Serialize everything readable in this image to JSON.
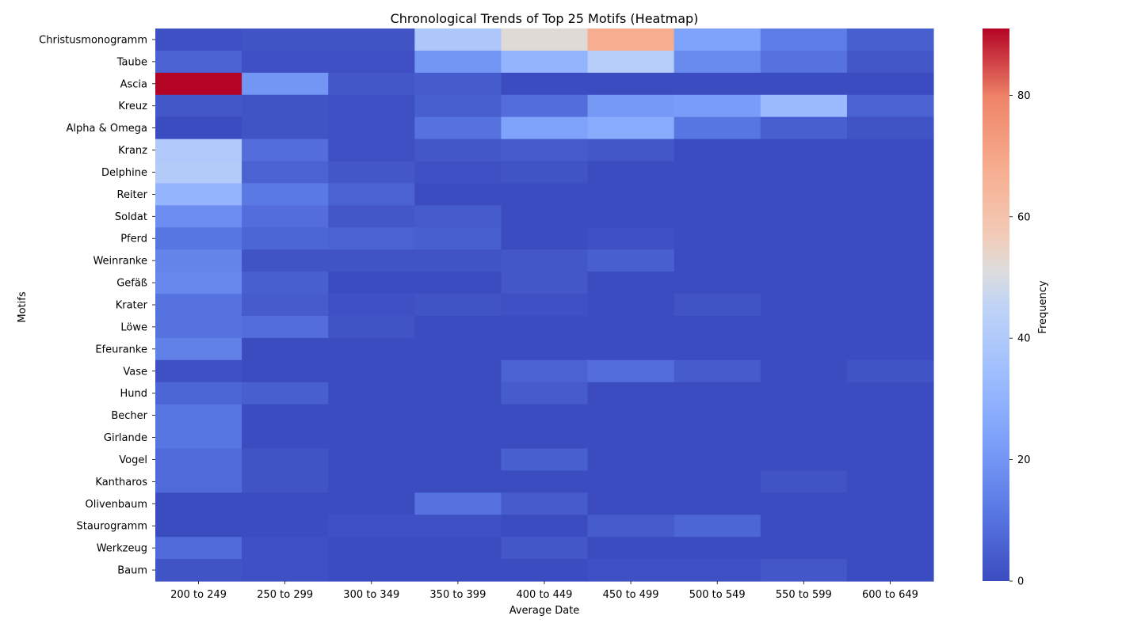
{
  "chart_data": {
    "type": "heatmap",
    "title": "Chronological Trends of Top 25 Motifs (Heatmap)",
    "xlabel": "Average Date",
    "ylabel": "Motifs",
    "colorbar_label": "Frequency",
    "colormap": "coolwarm",
    "vmin": 0,
    "vmax": 91,
    "colorbar_ticks": [
      0,
      20,
      40,
      60,
      80
    ],
    "colorbar_tick_labels": [
      "0",
      "20",
      "40",
      "60",
      "80"
    ],
    "x_categories": [
      "200 to 249",
      "250 to 299",
      "300 to 349",
      "350 to 399",
      "400 to 449",
      "450 to 499",
      "500 to 549",
      "550 to 599",
      "600 to 649"
    ],
    "y_categories": [
      "Christusmonogramm",
      "Taube",
      "Ascia",
      "Kreuz",
      "Alpha & Omega",
      "Kranz",
      "Delphine",
      "Reiter",
      "Soldat",
      "Pferd",
      "Weinranke",
      "Gefäß",
      "Krater",
      "Löwe",
      "Efeuranke",
      "Vase",
      "Hund",
      "Becher",
      "Girlande",
      "Vogel",
      "Kantharos",
      "Olivenbaum",
      "Staurogramm",
      "Werkzeug",
      "Baum"
    ],
    "values": [
      [
        1,
        2,
        2,
        39,
        52,
        68,
        24,
        13,
        5
      ],
      [
        6,
        1,
        1,
        20,
        31,
        42,
        17,
        10,
        3
      ],
      [
        91,
        20,
        3,
        4,
        0,
        0,
        0,
        0,
        0
      ],
      [
        3,
        2,
        1,
        5,
        9,
        21,
        22,
        33,
        6
      ],
      [
        0,
        2,
        1,
        10,
        24,
        27,
        11,
        5,
        2
      ],
      [
        40,
        9,
        1,
        3,
        4,
        3,
        0,
        0,
        0
      ],
      [
        41,
        6,
        3,
        1,
        2,
        0,
        0,
        0,
        0
      ],
      [
        31,
        12,
        6,
        0,
        0,
        0,
        0,
        0,
        0
      ],
      [
        18,
        9,
        3,
        4,
        0,
        0,
        0,
        0,
        0
      ],
      [
        11,
        7,
        6,
        5,
        0,
        1,
        0,
        0,
        0
      ],
      [
        15,
        2,
        2,
        2,
        3,
        5,
        0,
        0,
        0
      ],
      [
        16,
        5,
        0,
        0,
        3,
        0,
        0,
        0,
        0
      ],
      [
        10,
        4,
        1,
        2,
        1,
        0,
        2,
        0,
        0
      ],
      [
        10,
        9,
        2,
        0,
        0,
        0,
        0,
        0,
        0
      ],
      [
        14,
        0,
        0,
        0,
        0,
        0,
        0,
        0,
        0
      ],
      [
        1,
        0,
        0,
        0,
        6,
        9,
        4,
        0,
        2
      ],
      [
        7,
        5,
        0,
        0,
        4,
        0,
        0,
        0,
        0
      ],
      [
        11,
        0,
        0,
        0,
        0,
        0,
        0,
        0,
        0
      ],
      [
        11,
        0,
        0,
        0,
        0,
        0,
        0,
        0,
        0
      ],
      [
        8,
        2,
        0,
        0,
        5,
        0,
        0,
        0,
        0
      ],
      [
        8,
        2,
        0,
        0,
        0,
        0,
        0,
        2,
        0
      ],
      [
        0,
        0,
        0,
        10,
        4,
        0,
        0,
        0,
        0
      ],
      [
        0,
        0,
        1,
        1,
        0,
        4,
        7,
        0,
        0
      ],
      [
        8,
        1,
        0,
        0,
        3,
        0,
        0,
        0,
        0
      ],
      [
        2,
        1,
        0,
        0,
        0,
        1,
        1,
        3,
        0
      ]
    ]
  }
}
